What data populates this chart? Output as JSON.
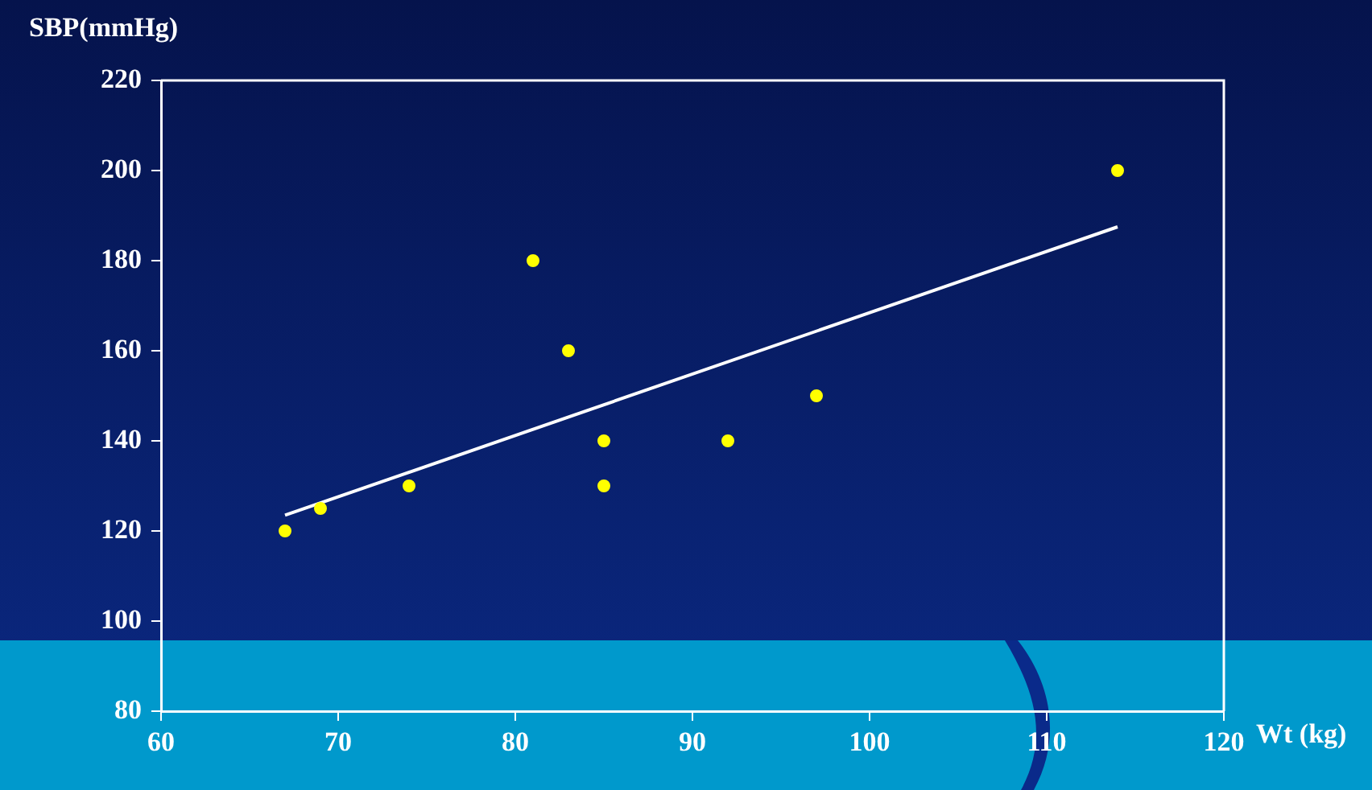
{
  "chart_data": {
    "type": "scatter",
    "xlabel": "Wt (kg)",
    "ylabel": "SBP(mmHg)",
    "x": [
      67,
      69,
      74,
      81,
      83,
      85,
      85,
      92,
      97,
      114
    ],
    "series": [
      {
        "type": "scatter",
        "color": "#ffff00",
        "marker": "circle",
        "values": [
          120,
          125,
          130,
          180,
          160,
          140,
          130,
          140,
          150,
          200
        ]
      },
      {
        "type": "line",
        "color": "#ffffff",
        "x": [
          67,
          114
        ],
        "values": [
          123.5,
          187.5
        ]
      }
    ],
    "xlim": [
      60,
      120
    ],
    "ylim": [
      80,
      220
    ],
    "xticks": [
      60,
      70,
      80,
      90,
      100,
      110,
      120
    ],
    "yticks": [
      80,
      100,
      120,
      140,
      160,
      180,
      200,
      220
    ],
    "grid": false,
    "legend": false
  }
}
